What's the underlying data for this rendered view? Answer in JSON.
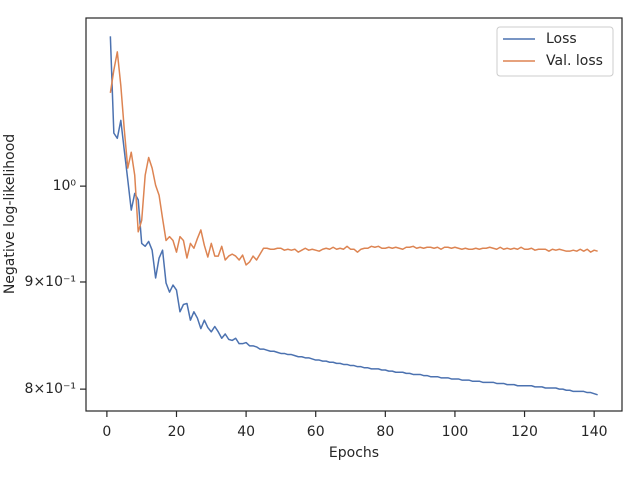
{
  "chart_data": {
    "type": "line",
    "x_label": "Epochs",
    "y_label": "Negative log-likelihood",
    "x": [
      1,
      2,
      3,
      4,
      5,
      6,
      7,
      8,
      9,
      10,
      11,
      12,
      13,
      14,
      15,
      16,
      17,
      18,
      19,
      20,
      21,
      22,
      23,
      24,
      25,
      26,
      27,
      28,
      29,
      30,
      31,
      32,
      33,
      34,
      35,
      36,
      37,
      38,
      39,
      40,
      41,
      42,
      43,
      44,
      45,
      46,
      47,
      48,
      49,
      50,
      51,
      52,
      53,
      54,
      55,
      56,
      57,
      58,
      59,
      60,
      61,
      62,
      63,
      64,
      65,
      66,
      67,
      68,
      69,
      70,
      71,
      72,
      73,
      74,
      75,
      76,
      77,
      78,
      79,
      80,
      81,
      82,
      83,
      84,
      85,
      86,
      87,
      88,
      89,
      90,
      91,
      92,
      93,
      94,
      95,
      96,
      97,
      98,
      99,
      100,
      101,
      102,
      103,
      104,
      105,
      106,
      107,
      108,
      109,
      110,
      111,
      112,
      113,
      114,
      115,
      116,
      117,
      118,
      119,
      120,
      121,
      122,
      123,
      124,
      125,
      126,
      127,
      128,
      129,
      130,
      131,
      132,
      133,
      134,
      135,
      136,
      137,
      138,
      139,
      140,
      141
    ],
    "series": [
      {
        "name": "Loss",
        "color": "#4c72b0",
        "values": [
          1.179,
          1.06,
          1.054,
          1.075,
          1.04,
          1.007,
          0.974,
          0.992,
          0.985,
          0.939,
          0.936,
          0.941,
          0.932,
          0.904,
          0.924,
          0.932,
          0.899,
          0.89,
          0.897,
          0.892,
          0.871,
          0.878,
          0.879,
          0.863,
          0.871,
          0.865,
          0.855,
          0.863,
          0.856,
          0.852,
          0.857,
          0.852,
          0.846,
          0.85,
          0.845,
          0.844,
          0.846,
          0.841,
          0.841,
          0.842,
          0.839,
          0.839,
          0.838,
          0.836,
          0.836,
          0.835,
          0.834,
          0.834,
          0.833,
          0.832,
          0.832,
          0.831,
          0.831,
          0.83,
          0.829,
          0.829,
          0.828,
          0.828,
          0.827,
          0.826,
          0.826,
          0.825,
          0.825,
          0.824,
          0.824,
          0.823,
          0.823,
          0.822,
          0.822,
          0.821,
          0.821,
          0.82,
          0.82,
          0.819,
          0.819,
          0.818,
          0.818,
          0.818,
          0.817,
          0.817,
          0.816,
          0.816,
          0.815,
          0.815,
          0.815,
          0.814,
          0.814,
          0.813,
          0.813,
          0.813,
          0.812,
          0.812,
          0.811,
          0.811,
          0.811,
          0.81,
          0.81,
          0.81,
          0.809,
          0.809,
          0.809,
          0.808,
          0.808,
          0.808,
          0.807,
          0.807,
          0.807,
          0.806,
          0.806,
          0.806,
          0.806,
          0.805,
          0.805,
          0.805,
          0.804,
          0.804,
          0.804,
          0.803,
          0.803,
          0.803,
          0.803,
          0.803,
          0.802,
          0.802,
          0.802,
          0.801,
          0.801,
          0.801,
          0.801,
          0.8,
          0.8,
          0.799,
          0.799,
          0.798,
          0.798,
          0.798,
          0.798,
          0.797,
          0.797,
          0.796,
          0.795
        ]
      },
      {
        "name": "Val. loss",
        "color": "#dd8452",
        "values": [
          1.108,
          1.136,
          1.159,
          1.117,
          1.064,
          1.02,
          1.038,
          1.012,
          0.951,
          0.963,
          1.012,
          1.032,
          1.02,
          1.001,
          0.99,
          0.965,
          0.942,
          0.946,
          0.942,
          0.93,
          0.946,
          0.942,
          0.924,
          0.939,
          0.934,
          0.944,
          0.953,
          0.937,
          0.925,
          0.939,
          0.926,
          0.926,
          0.936,
          0.922,
          0.926,
          0.928,
          0.926,
          0.922,
          0.927,
          0.917,
          0.92,
          0.926,
          0.922,
          0.928,
          0.934,
          0.934,
          0.933,
          0.933,
          0.934,
          0.934,
          0.932,
          0.933,
          0.932,
          0.933,
          0.93,
          0.932,
          0.934,
          0.932,
          0.933,
          0.932,
          0.931,
          0.933,
          0.934,
          0.933,
          0.935,
          0.933,
          0.934,
          0.933,
          0.936,
          0.933,
          0.933,
          0.93,
          0.933,
          0.934,
          0.934,
          0.936,
          0.935,
          0.936,
          0.934,
          0.934,
          0.935,
          0.934,
          0.935,
          0.934,
          0.933,
          0.935,
          0.935,
          0.936,
          0.934,
          0.935,
          0.934,
          0.935,
          0.935,
          0.934,
          0.935,
          0.933,
          0.935,
          0.935,
          0.934,
          0.935,
          0.934,
          0.933,
          0.934,
          0.933,
          0.933,
          0.934,
          0.933,
          0.934,
          0.934,
          0.935,
          0.934,
          0.933,
          0.935,
          0.933,
          0.934,
          0.933,
          0.934,
          0.933,
          0.935,
          0.933,
          0.933,
          0.934,
          0.932,
          0.933,
          0.933,
          0.933,
          0.931,
          0.933,
          0.932,
          0.933,
          0.932,
          0.931,
          0.931,
          0.932,
          0.931,
          0.933,
          0.931,
          0.933,
          0.93,
          0.932,
          0.931
        ]
      }
    ],
    "xlim": [
      -6,
      148
    ],
    "xticks": [
      0,
      20,
      40,
      60,
      80,
      100,
      120,
      140
    ],
    "ylim": [
      0.781,
      1.203
    ],
    "y_scale": "log",
    "yticks": [
      {
        "value": 0.8,
        "label": "8×10⁻¹"
      },
      {
        "value": 0.9,
        "label": "9×10⁻¹"
      },
      {
        "value": 1,
        "label": "10⁰"
      }
    ],
    "legend": "upper right"
  }
}
